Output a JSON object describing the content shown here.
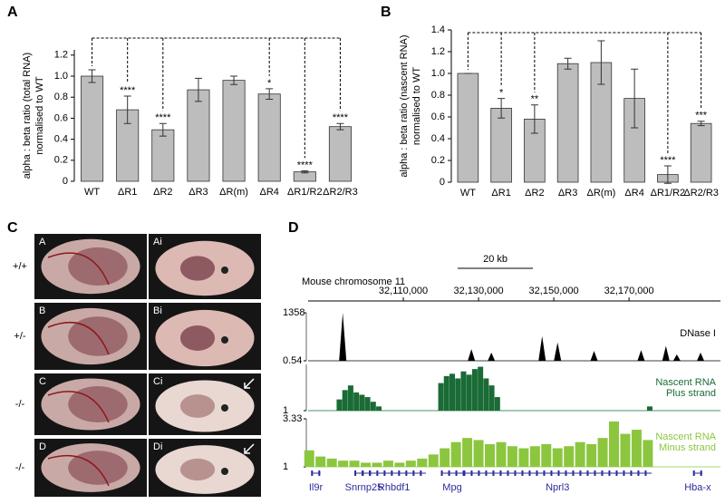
{
  "chart_data": [
    {
      "type": "bar",
      "panel": "A",
      "ylabel": [
        "alpha : beta ratio (total RNA)",
        "normalised to WT"
      ],
      "categories": [
        "WT",
        "ΔR1",
        "ΔR2",
        "ΔR3",
        "ΔR(m)",
        "ΔR4",
        "ΔR1/R2",
        "ΔR2/R3"
      ],
      "values": [
        1.0,
        0.68,
        0.49,
        0.87,
        0.96,
        0.83,
        0.09,
        0.52
      ],
      "errors": [
        0.06,
        0.13,
        0.06,
        0.11,
        0.04,
        0.05,
        0.01,
        0.03
      ],
      "significance": [
        null,
        "****",
        "****",
        null,
        null,
        "*",
        "****",
        "****"
      ],
      "color": "#bdbdbd",
      "ylim": [
        0,
        1.25
      ],
      "yticks": [
        0,
        0.2,
        0.4,
        0.6,
        0.8,
        {
          "value": 1,
          "label": "1.0"
        },
        1.2
      ]
    },
    {
      "type": "bar",
      "panel": "B",
      "ylabel": [
        "alpha : beta ratio (nascent RNA)",
        "normalised to WT"
      ],
      "categories": [
        "WT",
        "ΔR1",
        "ΔR2",
        "ΔR3",
        "ΔR(m)",
        "ΔR4",
        "ΔR1/R2",
        "ΔR2/R3"
      ],
      "values": [
        1.0,
        0.68,
        0.58,
        1.09,
        1.1,
        0.77,
        0.07,
        0.54
      ],
      "errors": [
        0,
        0.09,
        0.13,
        0.05,
        0.2,
        0.27,
        0.08,
        0.02
      ],
      "significance": [
        null,
        "*",
        "**",
        null,
        null,
        null,
        "****",
        "***"
      ],
      "color": "#bdbdbd",
      "ylim": [
        0,
        1.4
      ],
      "yticks": [
        0,
        0.2,
        0.4,
        0.6,
        0.8,
        {
          "value": 1,
          "label": "1.0"
        },
        1.2,
        1.4
      ]
    }
  ],
  "panel_c": {
    "label": "C",
    "genotypes": [
      "+/+",
      "+/-",
      "-/-",
      "-/-"
    ],
    "images": [
      [
        "A",
        "Ai"
      ],
      [
        "B",
        "Bi"
      ],
      [
        "C",
        "Ci"
      ],
      [
        "D",
        "Di"
      ]
    ]
  },
  "panel_d": {
    "label": "D",
    "chromosome": "Mouse chromosome 11",
    "xlim": [
      32084700,
      32194300
    ],
    "xticks": [
      {
        "value": 32110000,
        "label": "32,110,000"
      },
      {
        "value": 32130000,
        "label": "32,130,000"
      },
      {
        "value": 32150000,
        "label": "32,150,000"
      },
      {
        "value": 32170000,
        "label": "32,170,000"
      }
    ],
    "scale_bar": {
      "value": 20000,
      "label": "20 kb"
    },
    "tracks": [
      {
        "name": [
          "DNase I"
        ],
        "color": "#000000",
        "ylim": [
          0.54,
          1358
        ],
        "yticks": [
          0.54,
          1358
        ],
        "x": [
          32093900,
          32128100,
          32133400,
          32146900,
          32151000,
          32160700,
          32173200,
          32179800,
          32182700,
          32189000
        ],
        "values": [
          1358,
          330,
          230,
          700,
          520,
          280,
          300,
          420,
          180,
          230
        ]
      },
      {
        "name": [
          "Nascent RNA",
          "Plus strand"
        ],
        "color": "#1a6b35",
        "ylim": [
          1,
          100
        ],
        "yticks": [
          1
        ],
        "x": [
          32093000,
          32094500,
          32096000,
          32097500,
          32099000,
          32100500,
          32102000,
          32103500,
          32120000,
          32121500,
          32123000,
          32124500,
          32126000,
          32127500,
          32129000,
          32130500,
          32132000,
          32133500,
          32135000,
          32175500
        ],
        "values": [
          25,
          45,
          55,
          40,
          35,
          30,
          20,
          10,
          60,
          75,
          80,
          70,
          85,
          78,
          90,
          95,
          70,
          55,
          30,
          10
        ]
      },
      {
        "name": [
          "Nascent RNA",
          "Minus strand"
        ],
        "color": "#8cc63f",
        "ylim": [
          1,
          3.33
        ],
        "yticks": [
          1,
          3.33
        ],
        "x": [
          32085000,
          32088000,
          32091000,
          32094000,
          32097000,
          32100000,
          32103000,
          32106000,
          32109000,
          32112000,
          32115000,
          32118000,
          32121000,
          32124000,
          32127000,
          32130000,
          32133000,
          32136000,
          32139000,
          32142000,
          32145000,
          32148000,
          32151000,
          32154000,
          32157000,
          32160000,
          32163000,
          32166000,
          32169000,
          32172000,
          32175000
        ],
        "values": [
          1.8,
          1.5,
          1.4,
          1.3,
          1.3,
          1.2,
          1.2,
          1.3,
          1.2,
          1.3,
          1.4,
          1.6,
          1.9,
          2.2,
          2.4,
          2.3,
          2.1,
          2.2,
          2.0,
          1.9,
          2.0,
          2.1,
          1.9,
          2.0,
          2.2,
          2.1,
          2.4,
          3.2,
          2.6,
          2.8,
          2.3
        ]
      }
    ],
    "genes": [
      {
        "name": "Il9r",
        "start": 32085500,
        "end": 32088000
      },
      {
        "name": "Snrnp25",
        "start": 32097000,
        "end": 32102000
      },
      {
        "name": "Rhbdf1",
        "start": 32099000,
        "end": 32116000
      },
      {
        "name": "Mpg",
        "start": 32120000,
        "end": 32126000
      },
      {
        "name": "Nprl3",
        "start": 32126000,
        "end": 32176000
      },
      {
        "name": "Hba-x",
        "start": 32187000,
        "end": 32189500
      }
    ]
  }
}
